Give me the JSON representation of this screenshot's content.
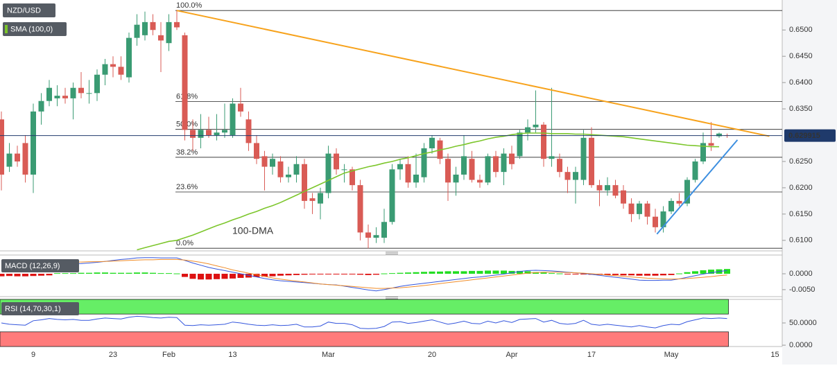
{
  "chart_data": {
    "type": "candlestick",
    "symbol": "NZD/USD",
    "indicator_label": "SMA (100,0)",
    "categories": [
      null,
      null,
      null,
      null,
      "9",
      null,
      null,
      null,
      null,
      null,
      null,
      null,
      null,
      null,
      "23",
      null,
      null,
      null,
      null,
      null,
      null,
      "Feb",
      null,
      null,
      null,
      null,
      null,
      null,
      null,
      "13",
      null,
      null,
      null,
      null,
      null,
      null,
      null,
      null,
      null,
      null,
      null,
      "Mar",
      null,
      null,
      null,
      null,
      null,
      null,
      null,
      null,
      null,
      null,
      null,
      null,
      "20",
      null,
      null,
      null,
      null,
      null,
      null,
      null,
      null,
      null,
      "Apr",
      null,
      null,
      null,
      null,
      null,
      null,
      null,
      null,
      null,
      "17",
      null,
      null,
      null,
      null,
      null,
      null,
      null,
      null,
      null,
      "May",
      null,
      null,
      null,
      null,
      null,
      null,
      null,
      null,
      null,
      null,
      null,
      null,
      "15"
    ],
    "ohlc": [
      [
        0.633,
        0.6345,
        0.6195,
        0.6225
      ],
      [
        0.624,
        0.6285,
        0.623,
        0.6265
      ],
      [
        0.6265,
        0.628,
        0.624,
        0.625
      ],
      [
        0.6285,
        0.63,
        0.621,
        0.6225
      ],
      [
        0.6225,
        0.636,
        0.619,
        0.6345
      ],
      [
        0.6345,
        0.638,
        0.632,
        0.6365
      ],
      [
        0.6365,
        0.6405,
        0.6355,
        0.639
      ],
      [
        0.637,
        0.6395,
        0.6355,
        0.6375
      ],
      [
        0.6375,
        0.639,
        0.636,
        0.637
      ],
      [
        0.637,
        0.64,
        0.633,
        0.639
      ],
      [
        0.639,
        0.642,
        0.637,
        0.638
      ],
      [
        0.638,
        0.6405,
        0.636,
        0.638
      ],
      [
        0.638,
        0.6425,
        0.6365,
        0.6415
      ],
      [
        0.6415,
        0.6445,
        0.6395,
        0.6435
      ],
      [
        0.6435,
        0.645,
        0.641,
        0.643
      ],
      [
        0.643,
        0.645,
        0.6405,
        0.6415
      ],
      [
        0.641,
        0.6495,
        0.64,
        0.6485
      ],
      [
        0.6485,
        0.653,
        0.647,
        0.651
      ],
      [
        0.649,
        0.6535,
        0.648,
        0.6515
      ],
      [
        0.6515,
        0.653,
        0.649,
        0.65
      ],
      [
        0.649,
        0.6515,
        0.642,
        0.648
      ],
      [
        0.6475,
        0.653,
        0.646,
        0.6515
      ],
      [
        0.6515,
        0.6538,
        0.65,
        0.6505
      ],
      [
        0.649,
        0.6495,
        0.629,
        0.631
      ],
      [
        0.631,
        0.633,
        0.627,
        0.6295
      ],
      [
        0.6295,
        0.634,
        0.6275,
        0.631
      ],
      [
        0.631,
        0.6335,
        0.6295,
        0.63
      ],
      [
        0.63,
        0.634,
        0.629,
        0.6305
      ],
      [
        0.6305,
        0.636,
        0.6295,
        0.631
      ],
      [
        0.63,
        0.637,
        0.6295,
        0.636
      ],
      [
        0.636,
        0.639,
        0.6335,
        0.6345
      ],
      [
        0.633,
        0.6345,
        0.627,
        0.6285
      ],
      [
        0.6285,
        0.63,
        0.6245,
        0.6255
      ],
      [
        0.626,
        0.627,
        0.6195,
        0.624
      ],
      [
        0.624,
        0.6265,
        0.6225,
        0.6255
      ],
      [
        0.625,
        0.626,
        0.621,
        0.622
      ],
      [
        0.622,
        0.624,
        0.621,
        0.6225
      ],
      [
        0.6225,
        0.626,
        0.621,
        0.6245
      ],
      [
        0.6245,
        0.6255,
        0.616,
        0.6175
      ],
      [
        0.618,
        0.619,
        0.615,
        0.6175
      ],
      [
        0.617,
        0.62,
        0.614,
        0.619
      ],
      [
        0.619,
        0.628,
        0.618,
        0.6265
      ],
      [
        0.6265,
        0.6275,
        0.6225,
        0.6235
      ],
      [
        0.6235,
        0.6245,
        0.621,
        0.6235
      ],
      [
        0.6235,
        0.624,
        0.6195,
        0.6205
      ],
      [
        0.6205,
        0.6215,
        0.61,
        0.6115
      ],
      [
        0.6115,
        0.613,
        0.6085,
        0.6105
      ],
      [
        0.6105,
        0.6125,
        0.6095,
        0.611
      ],
      [
        0.6105,
        0.616,
        0.6095,
        0.6135
      ],
      [
        0.6135,
        0.6245,
        0.613,
        0.6235
      ],
      [
        0.6235,
        0.6255,
        0.6215,
        0.6245
      ],
      [
        0.6245,
        0.626,
        0.62,
        0.621
      ],
      [
        0.621,
        0.6265,
        0.62,
        0.6225
      ],
      [
        0.622,
        0.6285,
        0.621,
        0.6275
      ],
      [
        0.6275,
        0.63,
        0.6265,
        0.6295
      ],
      [
        0.629,
        0.6295,
        0.6245,
        0.6255
      ],
      [
        0.6255,
        0.6265,
        0.6175,
        0.621
      ],
      [
        0.621,
        0.624,
        0.6185,
        0.6225
      ],
      [
        0.6225,
        0.63,
        0.6215,
        0.626
      ],
      [
        0.6255,
        0.627,
        0.621,
        0.6215
      ],
      [
        0.6215,
        0.6225,
        0.62,
        0.621
      ],
      [
        0.621,
        0.6265,
        0.6205,
        0.626
      ],
      [
        0.626,
        0.627,
        0.622,
        0.623
      ],
      [
        0.623,
        0.6275,
        0.6205,
        0.6265
      ],
      [
        0.6265,
        0.628,
        0.6235,
        0.6245
      ],
      [
        0.626,
        0.631,
        0.6255,
        0.6305
      ],
      [
        0.6305,
        0.633,
        0.629,
        0.6315
      ],
      [
        0.6315,
        0.6385,
        0.6305,
        0.632
      ],
      [
        0.632,
        0.6325,
        0.624,
        0.6255
      ],
      [
        0.6255,
        0.639,
        0.624,
        0.626
      ],
      [
        0.6255,
        0.6265,
        0.622,
        0.623
      ],
      [
        0.623,
        0.624,
        0.619,
        0.6215
      ],
      [
        0.6215,
        0.624,
        0.617,
        0.623
      ],
      [
        0.6215,
        0.631,
        0.6205,
        0.6295
      ],
      [
        0.6295,
        0.6315,
        0.62,
        0.6205
      ],
      [
        0.6205,
        0.6215,
        0.6165,
        0.6195
      ],
      [
        0.6195,
        0.622,
        0.6185,
        0.6205
      ],
      [
        0.6205,
        0.6215,
        0.618,
        0.6185
      ],
      [
        0.6195,
        0.6205,
        0.616,
        0.617
      ],
      [
        0.617,
        0.618,
        0.6135,
        0.615
      ],
      [
        0.615,
        0.6175,
        0.614,
        0.617
      ],
      [
        0.617,
        0.6175,
        0.613,
        0.6145
      ],
      [
        0.6145,
        0.616,
        0.6115,
        0.6125
      ],
      [
        0.6125,
        0.6165,
        0.6115,
        0.6155
      ],
      [
        0.6155,
        0.618,
        0.615,
        0.6175
      ],
      [
        0.6175,
        0.619,
        0.6165,
        0.617
      ],
      [
        0.617,
        0.622,
        0.6165,
        0.6215
      ],
      [
        0.6215,
        0.6255,
        0.621,
        0.625
      ],
      [
        0.625,
        0.6305,
        0.6245,
        0.6285
      ],
      [
        0.6285,
        0.6325,
        0.627,
        0.628
      ],
      [
        0.6298,
        0.6305,
        0.6295,
        0.6303
      ],
      [
        0.63,
        0.6303,
        0.6295,
        0.6299
      ],
      null,
      null,
      null,
      null,
      null,
      null
    ],
    "up_color": "#3a9b73",
    "down_color": "#d95b55",
    "ylim": [
      0.608,
      0.6557
    ],
    "yticks": [
      {
        "value": 0.61,
        "label": "0.6100"
      },
      {
        "value": 0.615,
        "label": "0.6150"
      },
      {
        "value": 0.62,
        "label": "0.6200"
      },
      {
        "value": 0.625,
        "label": "0.6250"
      },
      {
        "value": 0.635,
        "label": "0.6350"
      },
      {
        "value": 0.64,
        "label": "0.6400"
      },
      {
        "value": 0.645,
        "label": "0.6450"
      },
      {
        "value": 0.65,
        "label": "0.6500"
      }
    ],
    "last_price": 0.629915,
    "ma": {
      "name": "100-DMA",
      "color": "#7cc62b",
      "values": [
        null,
        null,
        null,
        null,
        null,
        null,
        null,
        null,
        null,
        null,
        null,
        null,
        null,
        null,
        null,
        null,
        null,
        0.6082,
        0.6086,
        0.609,
        0.6094,
        0.6098,
        0.61,
        0.6105,
        0.611,
        0.6116,
        0.6122,
        0.6128,
        0.6133,
        0.6139,
        0.6144,
        0.615,
        0.6155,
        0.6161,
        0.6166,
        0.6172,
        0.6179,
        0.6186,
        0.6193,
        0.62,
        0.6207,
        0.6214,
        0.6221,
        0.6228,
        0.6232,
        0.6236,
        0.624,
        0.6243,
        0.6247,
        0.625,
        0.6254,
        0.6257,
        0.6261,
        0.6265,
        0.6268,
        0.6272,
        0.6275,
        0.6279,
        0.6282,
        0.6286,
        0.6289,
        0.6293,
        0.6296,
        0.6298,
        0.6301,
        0.6303,
        0.6304,
        0.6304,
        0.6304,
        0.6303,
        0.6303,
        0.6303,
        0.6302,
        0.6302,
        0.6301,
        0.63,
        0.6299,
        0.6298,
        0.6297,
        0.6295,
        0.6293,
        0.6291,
        0.6289,
        0.6287,
        0.6285,
        0.6283,
        0.6281,
        0.628,
        0.6279,
        0.6278,
        0.6278,
        null,
        null,
        null,
        null,
        null,
        null,
        null
      ]
    },
    "fib_levels": [
      {
        "label": "100.0%",
        "value": 0.6537
      },
      {
        "label": "61.8%",
        "value": 0.6364
      },
      {
        "label": "50.0%",
        "value": 0.6311
      },
      {
        "label": "38.2%",
        "value": 0.6258
      },
      {
        "label": "23.6%",
        "value": 0.6192
      },
      {
        "label": "0.0%",
        "value": 0.6085
      }
    ],
    "trendlines": [
      {
        "color": "#f7a21b",
        "x": [
          22,
          96.3
        ],
        "y": [
          0.6537,
          0.6298
        ]
      },
      {
        "color": "#3d8fe0",
        "x": [
          82.2,
          92.3
        ],
        "y": [
          0.6112,
          0.6291
        ]
      }
    ],
    "macd": {
      "label": "MACD (12,26,9)",
      "ylim": [
        -0.0072,
        0.0059
      ],
      "yticks": [
        {
          "value": 0,
          "label": "0.0000"
        },
        {
          "value": -0.005,
          "label": "-0.0050"
        }
      ],
      "up_color": "#22dd22",
      "down_color": "#dd1111",
      "macd_color": "#3355dd",
      "signal_color": "#f08c28",
      "histogram": [
        -0.0008,
        -0.0007,
        -0.0008,
        -0.0008,
        -0.0007,
        -0.0006,
        -0.0005,
        0.0002,
        0.0002,
        0.0002,
        0.0003,
        0.0003,
        0.0004,
        0.0004,
        0.0003,
        0.0003,
        0.0003,
        0.0004,
        0.0004,
        0.0003,
        0.0002,
        0.0002,
        0.0001,
        -0.001,
        -0.0016,
        -0.0018,
        -0.0018,
        -0.0017,
        -0.0016,
        -0.0015,
        -0.0013,
        -0.0012,
        -0.001,
        -0.0009,
        -0.0008,
        -0.0006,
        -0.0005,
        -0.0004,
        -0.0003,
        -0.0002,
        -0.0002,
        -0.0001,
        -0.0001,
        -0.0001,
        -0.0002,
        -0.0003,
        -0.0004,
        -0.0003,
        0.0001,
        0.0002,
        0.0003,
        0.0004,
        0.0005,
        0.0006,
        0.0007,
        0.0007,
        0.0008,
        0.0008,
        0.0008,
        0.0009,
        0.0009,
        0.001,
        0.001,
        0.001,
        0.0009,
        0.0009,
        0.0008,
        0.0005,
        0.0004,
        0.0002,
        0.0001,
        -0.0001,
        -0.0002,
        -0.0002,
        -0.0003,
        -0.0003,
        -0.0004,
        -0.0004,
        -0.0005,
        -0.0005,
        -0.0006,
        -0.0006,
        -0.0006,
        -0.0005,
        -0.0004,
        0.0001,
        0.0005,
        0.0008,
        0.0011,
        0.0013,
        0.0014,
        0.0015,
        null,
        null,
        null,
        null,
        null,
        null
      ],
      "macd": [
        0.0028,
        0.0028,
        0.0027,
        0.0027,
        0.0028,
        0.0029,
        0.003,
        0.003,
        0.003,
        0.0031,
        0.0032,
        0.0034,
        0.0036,
        0.0039,
        0.0042,
        0.0045,
        0.0047,
        0.005,
        0.0051,
        0.0051,
        0.005,
        0.005,
        0.005,
        0.0042,
        0.0034,
        0.0027,
        0.002,
        0.0015,
        0.001,
        0.0005,
        0.0,
        -0.0005,
        -0.001,
        -0.0015,
        -0.0019,
        -0.0022,
        -0.0024,
        -0.0026,
        -0.0028,
        -0.003,
        -0.0032,
        -0.0034,
        -0.0035,
        -0.0039,
        -0.0043,
        -0.0047,
        -0.0051,
        -0.0054,
        -0.005,
        -0.0045,
        -0.004,
        -0.0036,
        -0.0033,
        -0.003,
        -0.0027,
        -0.0024,
        -0.0021,
        -0.0018,
        -0.0015,
        -0.0012,
        -0.001,
        -0.0007,
        -0.0004,
        -0.0001,
        0.0003,
        0.0007,
        0.001,
        0.0011,
        0.001,
        0.0009,
        0.0007,
        0.0005,
        0.0003,
        0.0001,
        -0.0002,
        -0.0005,
        -0.0008,
        -0.0011,
        -0.0014,
        -0.0017,
        -0.002,
        -0.0021,
        -0.0021,
        -0.002,
        -0.002,
        -0.0016,
        -0.0011,
        -0.0006,
        -0.0001,
        0.0003,
        0.0007,
        0.001,
        null,
        null,
        null,
        null,
        null,
        null
      ],
      "signal": [
        0.0036,
        0.0035,
        0.0035,
        0.0035,
        0.0035,
        0.0035,
        0.0035,
        0.0036,
        0.0036,
        0.0037,
        0.0037,
        0.0038,
        0.0038,
        0.0039,
        0.004,
        0.0041,
        0.0042,
        0.0043,
        0.0044,
        0.0044,
        0.0045,
        0.0045,
        0.0045,
        0.0043,
        0.004,
        0.0036,
        0.0031,
        0.0025,
        0.0019,
        0.0012,
        0.0007,
        0.0002,
        -0.0003,
        -0.0008,
        -0.0013,
        -0.0017,
        -0.002,
        -0.0023,
        -0.0026,
        -0.0029,
        -0.0032,
        -0.0034,
        -0.0036,
        -0.0038,
        -0.004,
        -0.0042,
        -0.0044,
        -0.0046,
        -0.0046,
        -0.0045,
        -0.0044,
        -0.0042,
        -0.004,
        -0.0037,
        -0.0034,
        -0.0031,
        -0.0028,
        -0.0025,
        -0.0022,
        -0.0019,
        -0.0016,
        -0.0013,
        -0.001,
        -0.0007,
        -0.0004,
        -0.0001,
        0.0002,
        0.0004,
        0.0005,
        0.0005,
        0.0005,
        0.0004,
        0.0003,
        0.0002,
        0.0,
        -0.0002,
        -0.0004,
        -0.0006,
        -0.0008,
        -0.001,
        -0.0012,
        -0.0014,
        -0.0015,
        -0.0016,
        -0.0017,
        -0.0016,
        -0.0015,
        -0.0013,
        -0.0011,
        -0.0009,
        -0.0006,
        -0.0004,
        null,
        null,
        null,
        null,
        null,
        null
      ]
    },
    "rsi": {
      "label": "RSI (14,70,30,1)",
      "ylim": [
        -3,
        103
      ],
      "yticks": [
        {
          "value": 50,
          "label": "50.0000"
        },
        {
          "value": 0,
          "label": "0.0000"
        }
      ],
      "upper": 70,
      "lower": 30,
      "upper_color": "#66ee66",
      "lower_color": "#ff7b7b",
      "color": "#3355dd",
      "values": [
        50,
        47,
        46,
        45,
        55,
        57,
        60,
        58,
        57,
        58,
        56,
        56,
        59,
        61,
        60,
        59,
        63,
        65,
        64,
        62,
        61,
        63,
        62,
        45,
        44,
        46,
        45,
        46,
        47,
        52,
        50,
        47,
        45,
        44,
        46,
        44,
        45,
        47,
        41,
        41,
        43,
        52,
        49,
        49,
        46,
        38,
        37,
        38,
        42,
        52,
        53,
        49,
        51,
        54,
        57,
        52,
        47,
        50,
        54,
        49,
        48,
        54,
        50,
        55,
        51,
        58,
        59,
        60,
        52,
        56,
        49,
        47,
        49,
        56,
        47,
        45,
        47,
        45,
        43,
        41,
        44,
        41,
        39,
        44,
        47,
        46,
        53,
        57,
        61,
        60,
        61,
        60,
        null,
        null,
        null,
        null,
        null,
        null
      ]
    }
  }
}
